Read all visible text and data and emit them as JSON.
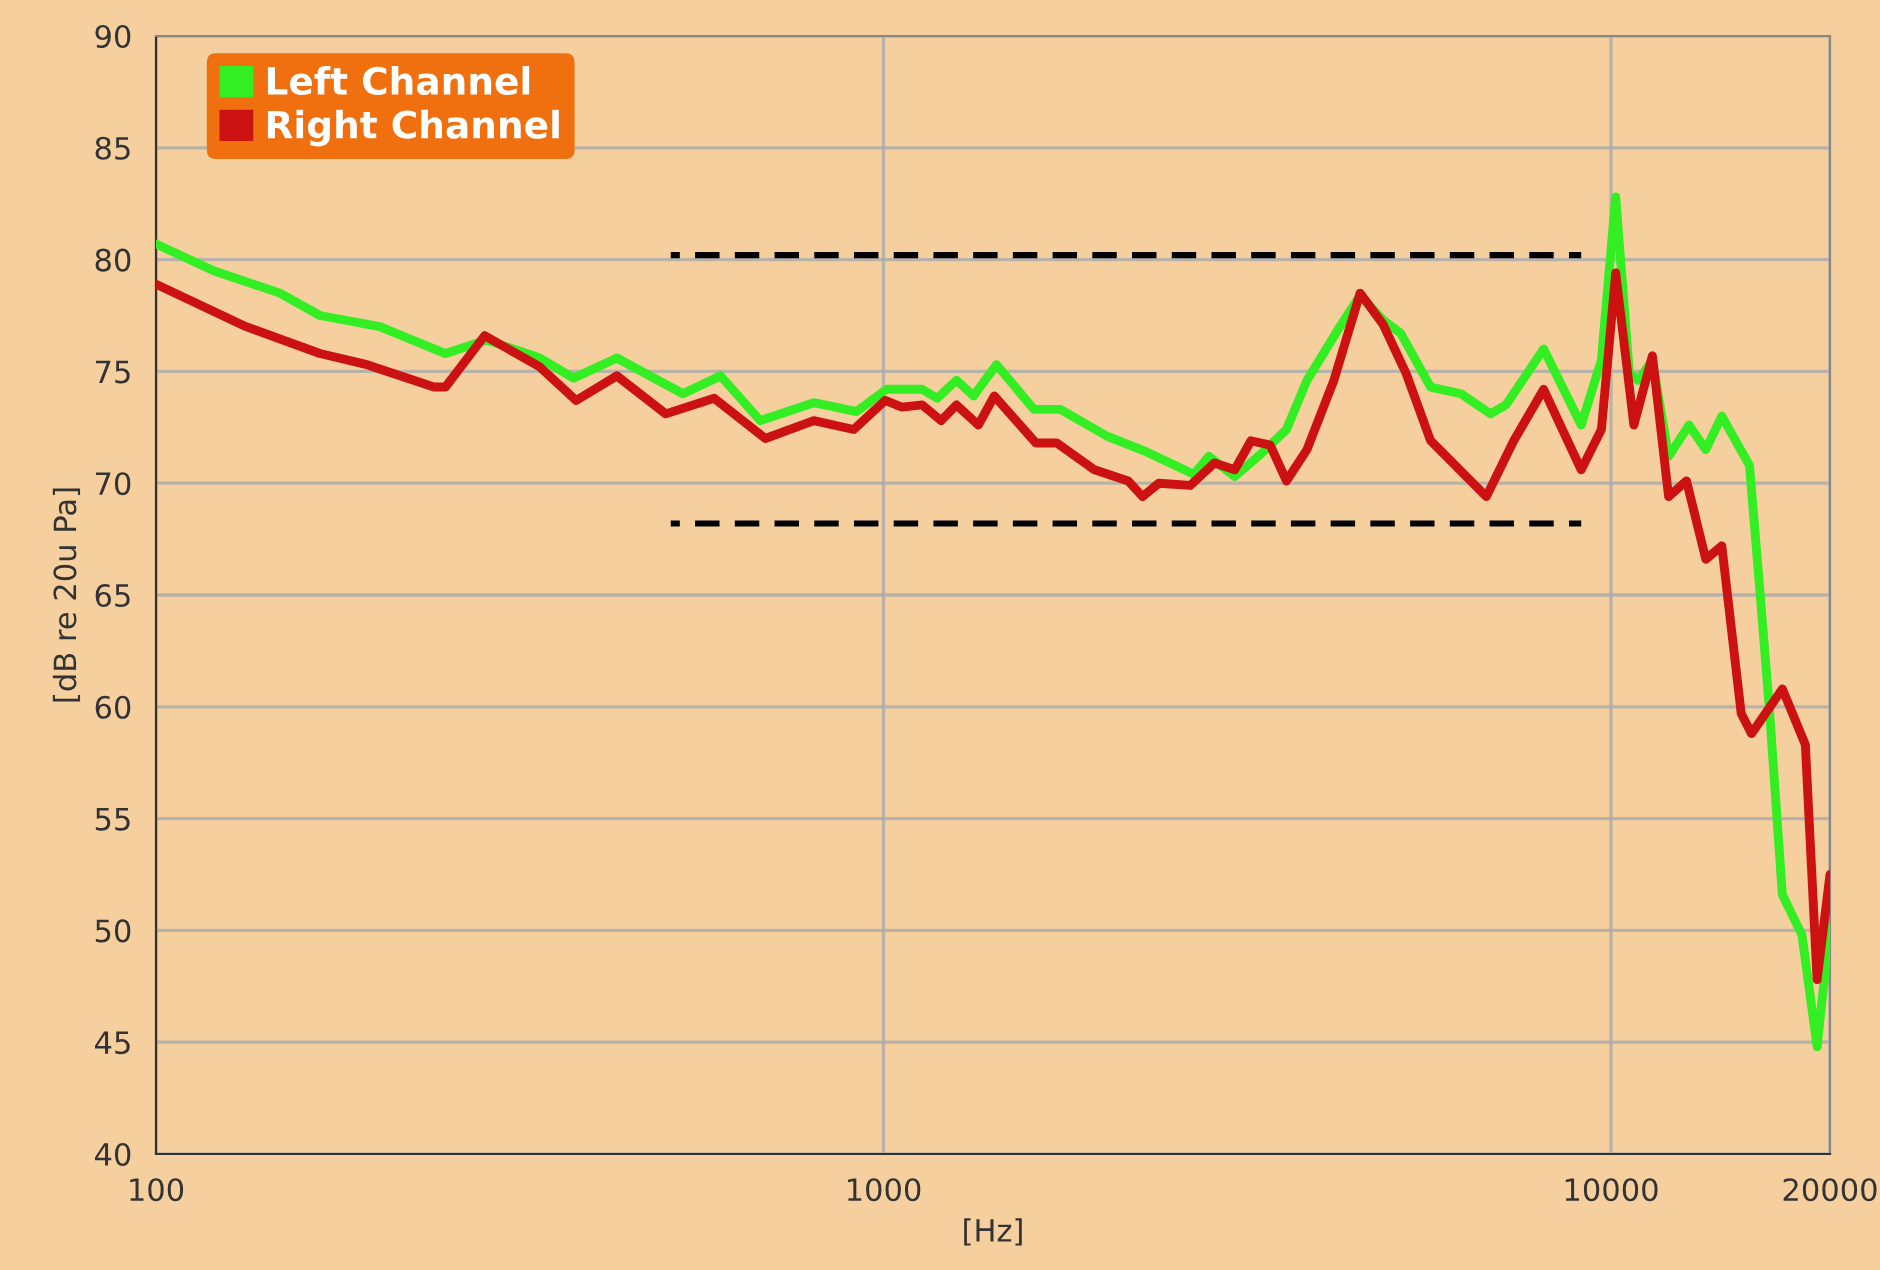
{
  "chart_data": {
    "type": "line",
    "xlabel": "[Hz]",
    "ylabel": "[dB re 20u Pa]",
    "log": "x",
    "grid": true,
    "legend": "top left",
    "xlim": [
      100,
      20000
    ],
    "xticks": [
      100,
      1000,
      10000,
      20000
    ],
    "ylim": [
      40,
      90
    ],
    "yticks": [
      40,
      45,
      50,
      55,
      60,
      65,
      70,
      75,
      80,
      85,
      90
    ],
    "series": [
      {
        "name": "Left Channel",
        "color": "#33ee22",
        "line_style": "solid",
        "x": [
          100,
          120,
          148,
          168,
          203,
          250,
          285,
          337,
          375,
          430,
          530,
          597,
          677,
          802,
          918,
          1010,
          1130,
          1185,
          1260,
          1330,
          1430,
          1610,
          1750,
          2030,
          2300,
          2670,
          2800,
          3040,
          3300,
          3580,
          3820,
          4240,
          4520,
          4860,
          5140,
          5650,
          6220,
          6830,
          7170,
          8080,
          9100,
          9700,
          10150,
          10600,
          10900,
          11400,
          12000,
          12800,
          13500,
          14200,
          15500,
          16000,
          16500,
          17200,
          18300,
          19200,
          20000
        ],
        "values": [
          80.7,
          79.5,
          78.5,
          77.5,
          77.0,
          75.8,
          76.4,
          75.6,
          74.7,
          75.6,
          74.0,
          74.8,
          72.8,
          73.6,
          73.2,
          74.2,
          74.2,
          73.8,
          74.6,
          73.9,
          75.3,
          73.3,
          73.3,
          72.1,
          71.4,
          70.4,
          71.2,
          70.3,
          71.3,
          72.4,
          74.6,
          77.0,
          78.4,
          77.3,
          76.7,
          74.3,
          74.0,
          73.1,
          73.5,
          76.0,
          72.6,
          75.5,
          82.8,
          74.9,
          74.6,
          75.5,
          71.2,
          72.6,
          71.5,
          73.0,
          70.8,
          65.4,
          60.0,
          51.6,
          49.8,
          44.8,
          50.2
        ]
      },
      {
        "name": "Right Channel",
        "color": "#cc1111",
        "line_style": "solid",
        "x": [
          100,
          133,
          168,
          195,
          241,
          250,
          283,
          337,
          378,
          430,
          502,
          585,
          688,
          802,
          910,
          1005,
          1060,
          1130,
          1200,
          1260,
          1350,
          1420,
          1620,
          1730,
          1950,
          2170,
          2270,
          2390,
          2640,
          2850,
          3040,
          3200,
          3400,
          3580,
          3820,
          4160,
          4520,
          4860,
          5230,
          5650,
          6740,
          7350,
          8080,
          9100,
          9700,
          10150,
          10750,
          11400,
          12000,
          12700,
          13500,
          14200,
          15100,
          15600,
          17200,
          18500,
          19200,
          20000
        ],
        "values": [
          78.9,
          77.0,
          75.8,
          75.3,
          74.3,
          74.3,
          76.6,
          75.2,
          73.7,
          74.8,
          73.1,
          73.8,
          72.0,
          72.8,
          72.4,
          73.7,
          73.4,
          73.5,
          72.8,
          73.5,
          72.6,
          73.9,
          71.8,
          71.8,
          70.6,
          70.1,
          69.4,
          70.0,
          69.9,
          70.9,
          70.6,
          71.9,
          71.7,
          70.1,
          71.5,
          74.6,
          78.5,
          77.1,
          74.9,
          71.9,
          69.4,
          71.9,
          74.2,
          70.6,
          72.4,
          79.4,
          72.6,
          75.7,
          69.4,
          70.1,
          66.6,
          67.2,
          59.7,
          58.8,
          60.8,
          58.3,
          47.8,
          52.5
        ]
      },
      {
        "color": "#000000",
        "line_style": "dashed",
        "x": [
          510,
          9100
        ],
        "values": [
          80.2,
          80.2
        ]
      },
      {
        "color": "#000000",
        "line_style": "dashed",
        "x": [
          510,
          9100
        ],
        "values": [
          68.2,
          68.2
        ]
      }
    ]
  }
}
